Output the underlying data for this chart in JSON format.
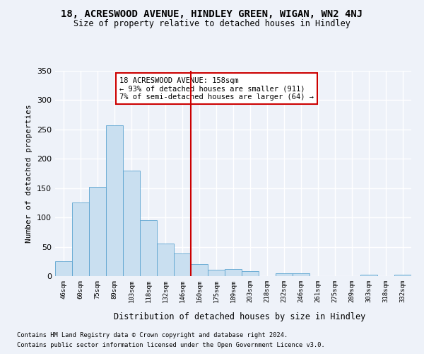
{
  "title": "18, ACRESWOOD AVENUE, HINDLEY GREEN, WIGAN, WN2 4NJ",
  "subtitle": "Size of property relative to detached houses in Hindley",
  "xlabel": "Distribution of detached houses by size in Hindley",
  "ylabel": "Number of detached properties",
  "footnote1": "Contains HM Land Registry data © Crown copyright and database right 2024.",
  "footnote2": "Contains public sector information licensed under the Open Government Licence v3.0.",
  "annotation_line1": "18 ACRESWOOD AVENUE: 158sqm",
  "annotation_line2": "← 93% of detached houses are smaller (911)",
  "annotation_line3": "7% of semi-detached houses are larger (64) →",
  "bar_categories": [
    "46sqm",
    "60sqm",
    "75sqm",
    "89sqm",
    "103sqm",
    "118sqm",
    "132sqm",
    "146sqm",
    "160sqm",
    "175sqm",
    "189sqm",
    "203sqm",
    "218sqm",
    "232sqm",
    "246sqm",
    "261sqm",
    "275sqm",
    "289sqm",
    "303sqm",
    "318sqm",
    "332sqm"
  ],
  "bar_values": [
    25,
    125,
    152,
    257,
    180,
    95,
    55,
    39,
    20,
    11,
    12,
    8,
    0,
    5,
    5,
    0,
    0,
    0,
    3,
    0,
    2
  ],
  "bar_color": "#c9dff0",
  "bar_edge_color": "#5ba3d0",
  "vline_color": "#cc0000",
  "vline_x_index": 8,
  "background_color": "#eef2f9",
  "grid_color": "#ffffff",
  "annotation_box_color": "#cc0000",
  "ylim": [
    0,
    350
  ],
  "yticks": [
    0,
    50,
    100,
    150,
    200,
    250,
    300,
    350
  ]
}
